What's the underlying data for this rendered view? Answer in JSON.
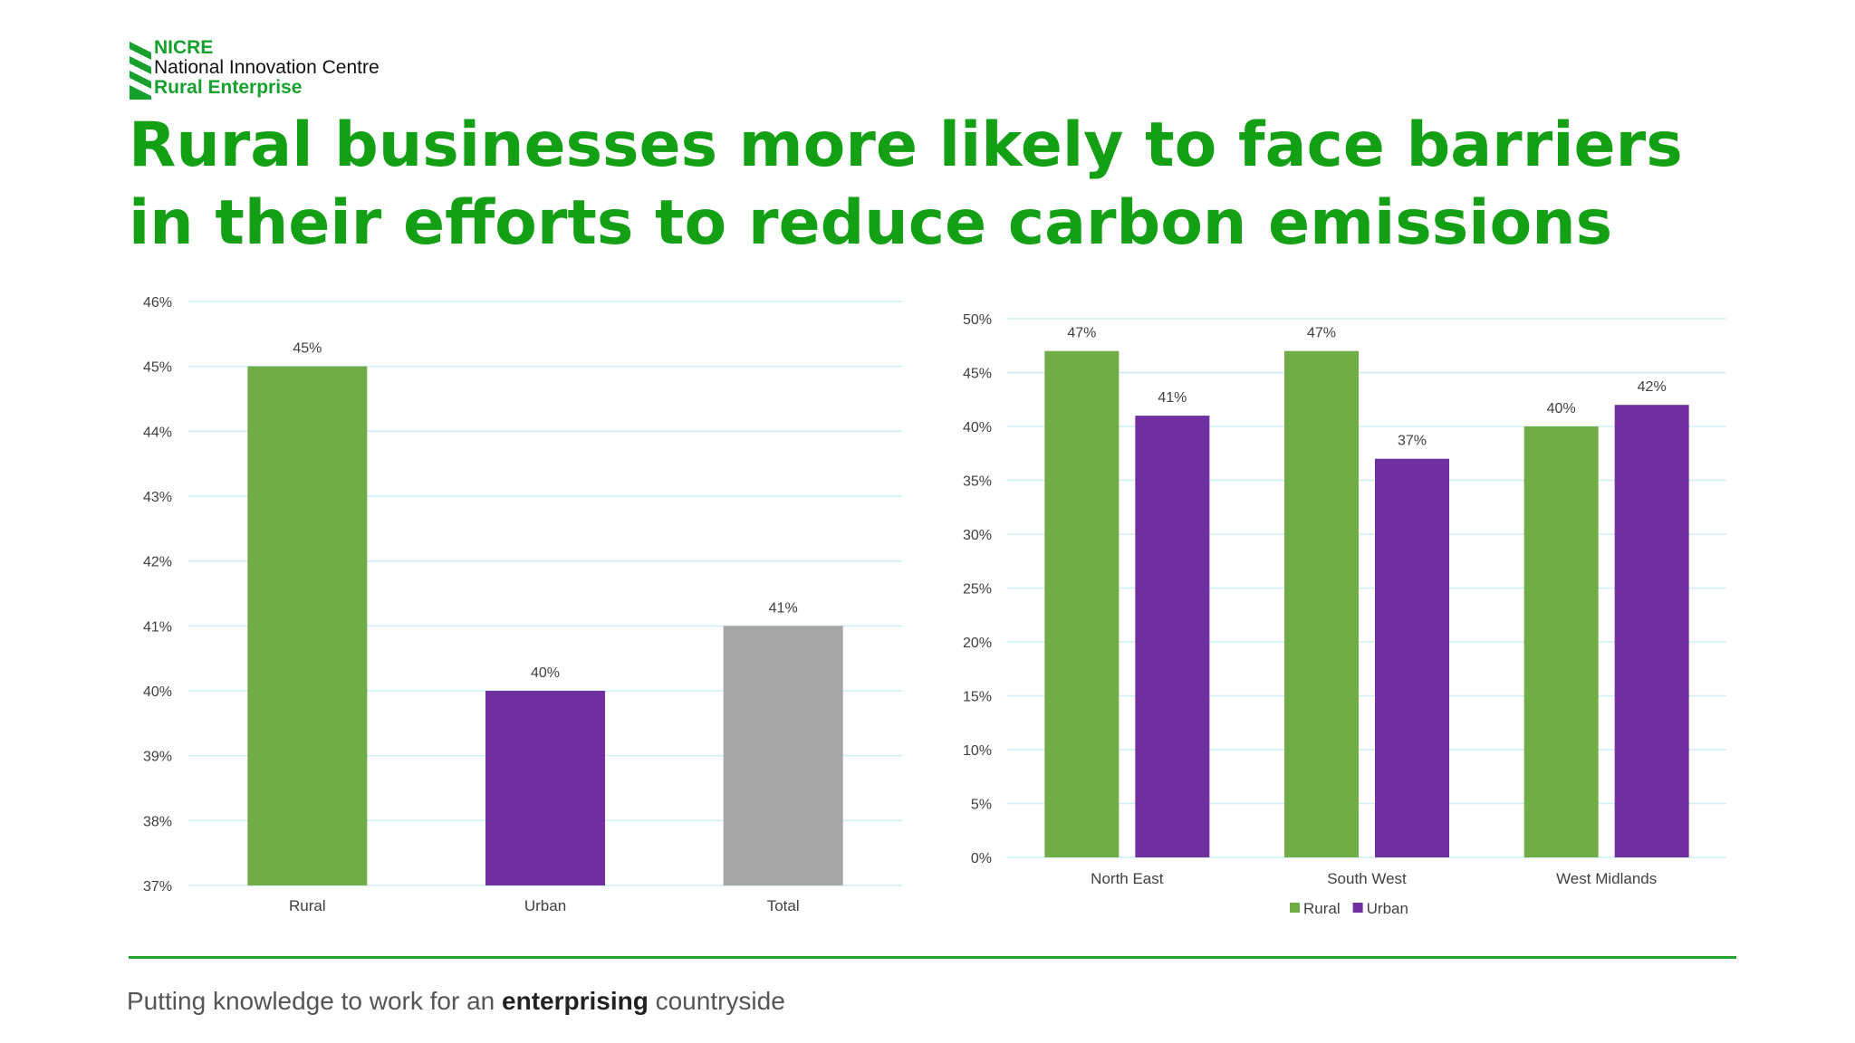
{
  "header": {
    "logo_short": "NICRE",
    "logo_line1": "National Innovation Centre",
    "logo_line2": "Rural Enterprise",
    "title": "Rural businesses more likely to face barriers in their efforts to reduce carbon emissions"
  },
  "colors": {
    "rural": "#70ad47",
    "urban": "#7030a0",
    "total": "#a5a5a5",
    "title": "#13a015",
    "gridline": "#cfeef3"
  },
  "chart_data": [
    {
      "type": "bar",
      "categories": [
        "Rural",
        "Urban",
        "Total"
      ],
      "values": [
        45,
        40,
        41
      ],
      "data_labels": [
        "45%",
        "40%",
        "41%"
      ],
      "bar_colors": [
        "#70ad47",
        "#7030a0",
        "#a5a5a5"
      ],
      "ylim": [
        37,
        46
      ],
      "yticks": [
        46,
        45,
        44,
        43,
        42,
        41,
        40,
        39,
        38,
        37
      ],
      "ytick_labels": [
        "46%",
        "45%",
        "44%",
        "43%",
        "42%",
        "41%",
        "40%",
        "39%",
        "38%",
        "37%"
      ],
      "grid": true,
      "title": "",
      "xlabel": "",
      "ylabel": ""
    },
    {
      "type": "bar",
      "categories": [
        "North East",
        "South West",
        "West Midlands"
      ],
      "series": [
        {
          "name": "Rural",
          "values": [
            47,
            47,
            40
          ],
          "labels": [
            "47%",
            "47%",
            "40%"
          ],
          "color": "#70ad47"
        },
        {
          "name": "Urban",
          "values": [
            41,
            37,
            42
          ],
          "labels": [
            "41%",
            "37%",
            "42%"
          ],
          "color": "#7030a0"
        }
      ],
      "ylim": [
        0,
        50
      ],
      "yticks": [
        50,
        45,
        40,
        35,
        30,
        25,
        20,
        15,
        10,
        5,
        0
      ],
      "ytick_labels": [
        "50%",
        "45%",
        "40%",
        "35%",
        "30%",
        "25%",
        "20%",
        "15%",
        "10%",
        "5%",
        "0%"
      ],
      "grid": true,
      "legend": "bottom",
      "title": "",
      "xlabel": "",
      "ylabel": ""
    }
  ],
  "footer": {
    "tagline_before": "Putting knowledge to work for an ",
    "tagline_bold": "enterprising",
    "tagline_after": " countryside"
  }
}
